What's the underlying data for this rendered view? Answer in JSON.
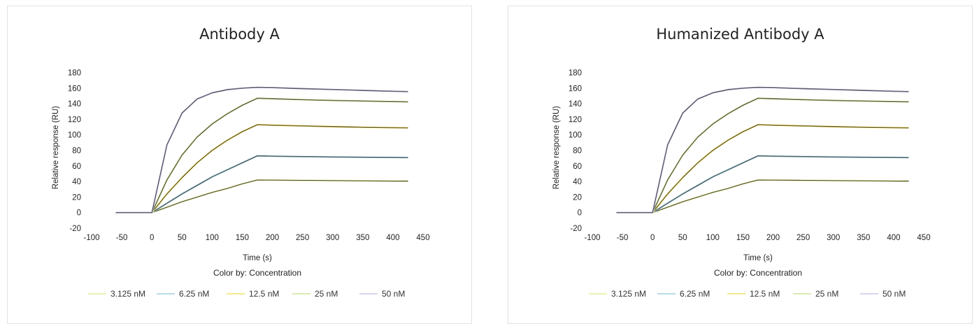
{
  "chart_data": [
    {
      "type": "line",
      "title": "Antibody A",
      "xlabel": "Time (s)",
      "ylabel": "Relative response (RU)",
      "xlim": [
        -100,
        450
      ],
      "ylim": [
        -20,
        180
      ],
      "x_ticks": [
        "-100",
        "-50",
        "0",
        "50",
        "100",
        "150",
        "200",
        "250",
        "300",
        "350",
        "400",
        "450"
      ],
      "y_ticks": [
        "180",
        "160",
        "140",
        "120",
        "100",
        "80",
        "60",
        "40",
        "20",
        "0",
        "-20"
      ],
      "grid": false,
      "legend_title": "Color by: Concentration",
      "legend_position": "bottom",
      "series": [
        {
          "name": "3.125 nM",
          "color": "#e3ee9e",
          "x": [
            -60,
            0,
            25,
            50,
            75,
            100,
            125,
            150,
            175,
            200,
            250,
            300,
            350,
            400,
            425
          ],
          "y": [
            0,
            0,
            7,
            14,
            20,
            26,
            31,
            37,
            42,
            41.8,
            41.5,
            41.2,
            40.9,
            40.6,
            40.5
          ]
        },
        {
          "name": "6.25 nM",
          "color": "#9fd1dc",
          "x": [
            -60,
            0,
            25,
            50,
            75,
            100,
            125,
            150,
            175,
            200,
            250,
            300,
            350,
            400,
            425
          ],
          "y": [
            0,
            0,
            12,
            24,
            35,
            46,
            55,
            64,
            73,
            72.6,
            72,
            71.6,
            71.2,
            70.9,
            70.8
          ]
        },
        {
          "name": "12.5 nM",
          "color": "#f0e26a",
          "x": [
            -60,
            0,
            25,
            50,
            75,
            100,
            125,
            150,
            175,
            200,
            250,
            300,
            350,
            400,
            425
          ],
          "y": [
            0,
            0,
            24,
            45,
            64,
            80,
            93,
            104,
            113,
            112.5,
            111.5,
            110.5,
            109.8,
            109.2,
            109
          ]
        },
        {
          "name": "25 nM",
          "color": "#cde39a",
          "x": [
            -60,
            0,
            25,
            50,
            75,
            100,
            125,
            150,
            175,
            200,
            250,
            300,
            350,
            400,
            425
          ],
          "y": [
            0,
            0,
            42,
            74,
            97,
            114,
            127,
            138,
            147,
            146.4,
            145.2,
            144.2,
            143.4,
            142.7,
            142.4
          ]
        },
        {
          "name": "50 nM",
          "color": "#c9c9e8",
          "x": [
            -60,
            0,
            25,
            50,
            75,
            100,
            125,
            150,
            175,
            200,
            250,
            300,
            350,
            400,
            425
          ],
          "y": [
            0,
            0,
            87,
            128,
            146,
            154,
            158,
            160,
            161,
            160.6,
            159.4,
            158.2,
            157.1,
            156,
            155.5
          ]
        }
      ]
    },
    {
      "type": "line",
      "title": "Humanized Antibody A",
      "xlabel": "Time (s)",
      "ylabel": "Relative response (RU)",
      "xlim": [
        -100,
        450
      ],
      "ylim": [
        -20,
        180
      ],
      "x_ticks": [
        "-100",
        "-50",
        "0",
        "50",
        "100",
        "150",
        "200",
        "250",
        "300",
        "350",
        "400",
        "450"
      ],
      "y_ticks": [
        "180",
        "160",
        "140",
        "120",
        "100",
        "80",
        "60",
        "40",
        "20",
        "0",
        "-20"
      ],
      "grid": false,
      "legend_title": "Color by: Concentration",
      "legend_position": "bottom",
      "series": [
        {
          "name": "3.125 nM",
          "color": "#e3ee9e",
          "x": [
            -60,
            0,
            25,
            50,
            75,
            100,
            125,
            150,
            175,
            200,
            250,
            300,
            350,
            400,
            425
          ],
          "y": [
            0,
            0,
            7,
            14,
            20,
            26,
            31,
            37,
            42,
            41.8,
            41.5,
            41.2,
            40.9,
            40.6,
            40.5
          ]
        },
        {
          "name": "6.25 nM",
          "color": "#9fd1dc",
          "x": [
            -60,
            0,
            25,
            50,
            75,
            100,
            125,
            150,
            175,
            200,
            250,
            300,
            350,
            400,
            425
          ],
          "y": [
            0,
            0,
            12,
            24,
            35,
            46,
            55,
            64,
            73,
            72.6,
            72,
            71.6,
            71.2,
            70.9,
            70.8
          ]
        },
        {
          "name": "12.5 nM",
          "color": "#f0e26a",
          "x": [
            -60,
            0,
            25,
            50,
            75,
            100,
            125,
            150,
            175,
            200,
            250,
            300,
            350,
            400,
            425
          ],
          "y": [
            0,
            0,
            24,
            45,
            64,
            80,
            93,
            104,
            113,
            112.5,
            111.5,
            110.5,
            109.8,
            109.2,
            109
          ]
        },
        {
          "name": "25 nM",
          "color": "#cde39a",
          "x": [
            -60,
            0,
            25,
            50,
            75,
            100,
            125,
            150,
            175,
            200,
            250,
            300,
            350,
            400,
            425
          ],
          "y": [
            0,
            0,
            42,
            74,
            97,
            114,
            127,
            138,
            147,
            146.4,
            145.2,
            144.2,
            143.4,
            142.7,
            142.4
          ]
        },
        {
          "name": "50 nM",
          "color": "#c9c9e8",
          "x": [
            -60,
            0,
            25,
            50,
            75,
            100,
            125,
            150,
            175,
            200,
            250,
            300,
            350,
            400,
            425
          ],
          "y": [
            0,
            0,
            87,
            128,
            146,
            154,
            158,
            160,
            161,
            160.6,
            159.4,
            158.2,
            157.1,
            156,
            155.5
          ]
        }
      ]
    }
  ]
}
